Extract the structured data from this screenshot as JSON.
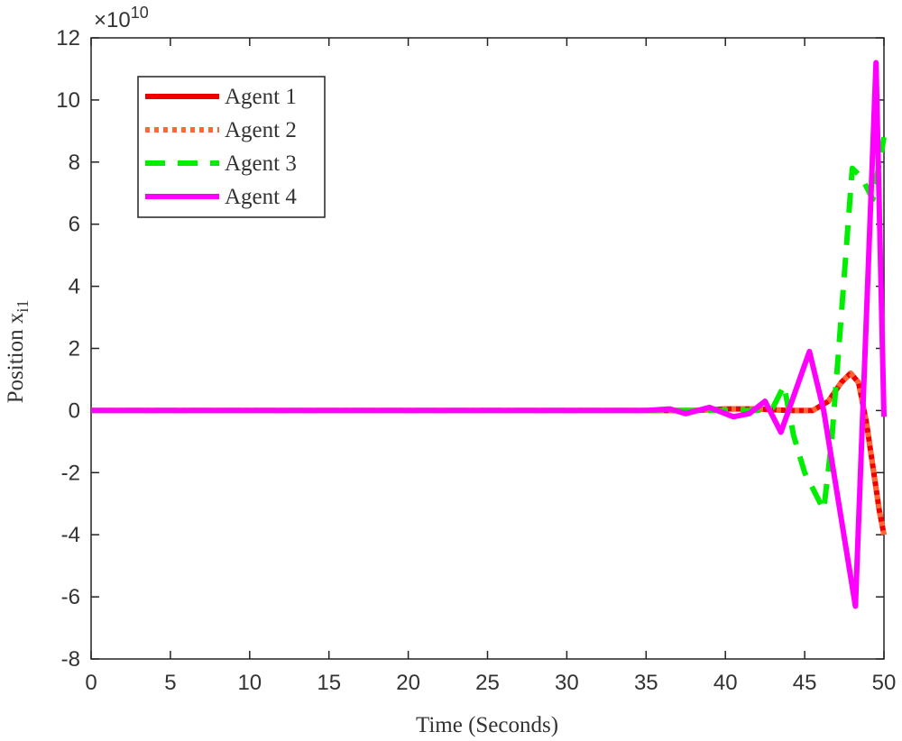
{
  "chart_data": {
    "type": "line",
    "xlabel": "Time (Seconds)",
    "ylabel": "Position x",
    "ylabel_subscript": "i1",
    "y_exponent": "×10",
    "y_exponent_power": "10",
    "xlim": [
      0,
      50
    ],
    "xticks": [
      0,
      5,
      10,
      15,
      20,
      25,
      30,
      35,
      40,
      45,
      50
    ],
    "ylim": [
      -8,
      12
    ],
    "yticks": [
      -8,
      -6,
      -4,
      -2,
      0,
      2,
      4,
      6,
      8,
      10,
      12
    ],
    "legend": "upper left",
    "series": [
      {
        "name": "Agent 1",
        "color": "#ee0000",
        "style": "solid",
        "x": [
          0,
          35,
          38,
          40,
          42,
          44,
          45.5,
          46.5,
          47.3,
          47.9,
          48.4,
          48.9,
          49.3,
          49.7,
          50
        ],
        "values": [
          0,
          0,
          0,
          0.05,
          0.05,
          0,
          0,
          0.3,
          0.9,
          1.2,
          0.9,
          -0.4,
          -1.8,
          -3.2,
          -4
        ]
      },
      {
        "name": "Agent 2",
        "color": "#ff6633",
        "style": "dotted",
        "x": [
          0,
          35,
          38,
          40,
          42,
          44,
          45.5,
          46.5,
          47.3,
          47.9,
          48.4,
          48.9,
          49.3,
          49.7,
          50
        ],
        "values": [
          0,
          0,
          0,
          0.05,
          0.05,
          0,
          0,
          0.3,
          0.9,
          1.2,
          0.9,
          -0.4,
          -1.8,
          -3.2,
          -4
        ]
      },
      {
        "name": "Agent 3",
        "color": "#00ee00",
        "style": "dashed",
        "x": [
          0,
          36,
          40,
          42,
          43,
          43.7,
          44.3,
          45,
          46.2,
          46.7,
          47.3,
          48,
          48.6,
          49.3,
          50
        ],
        "values": [
          0,
          0,
          0,
          0,
          0.1,
          0.8,
          -0.8,
          -2,
          -3.2,
          -1,
          3,
          7.8,
          7.5,
          6.8,
          8.8
        ]
      },
      {
        "name": "Agent 4",
        "color": "#ff00ff",
        "style": "solid",
        "x": [
          0,
          35,
          36.5,
          37.5,
          39,
          40.5,
          41.5,
          42.5,
          43.5,
          45.3,
          46.2,
          48.2,
          49.5,
          50
        ],
        "values": [
          0,
          0,
          0.05,
          -0.1,
          0.1,
          -0.2,
          -0.1,
          0.3,
          -0.7,
          1.9,
          0,
          -6.3,
          11.2,
          -0.2
        ]
      }
    ]
  }
}
